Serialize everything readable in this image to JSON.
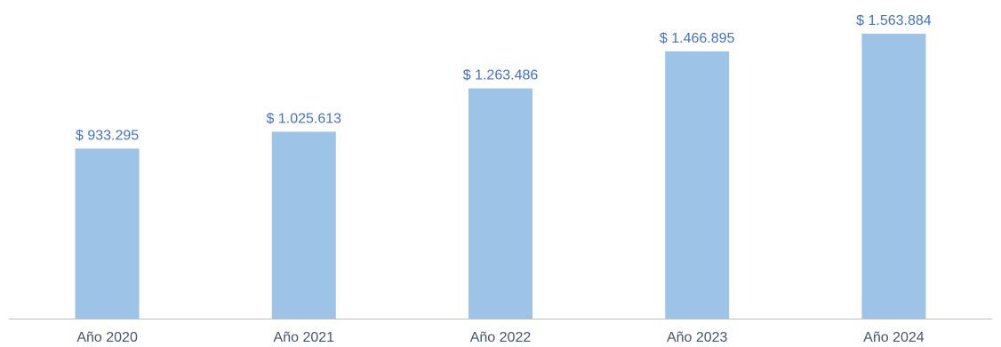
{
  "colors": {
    "bar": "#9DC3E6",
    "label": "#4472C4",
    "axis": "#BFBFBF",
    "tick_text": "#44546A"
  },
  "chart_data": {
    "type": "bar",
    "title": "",
    "xlabel": "",
    "ylabel": "",
    "categories": [
      "Año 2020",
      "Año 2021",
      "Año 2022",
      "Año 2023",
      "Año 2024"
    ],
    "values": [
      933295,
      1025613,
      1263486,
      1466895,
      1563884
    ],
    "data_labels": [
      "$ 933.295",
      "$ 1.025.613",
      "$ 1.263.486",
      "$ 1.466.895",
      "$ 1.563.884"
    ],
    "ylim": [
      0,
      1700000
    ],
    "grid": false,
    "legend": "none",
    "y_axis_visible": false
  }
}
